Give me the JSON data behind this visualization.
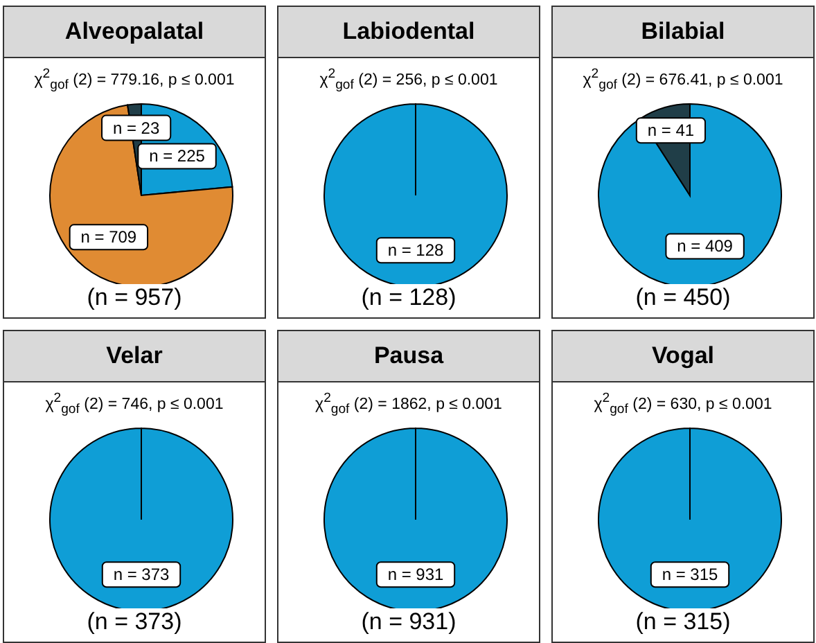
{
  "chart_data": [
    {
      "type": "pie",
      "title": "Alveopalatal",
      "subtitle": "χ$^{2}$$_{gof}$ (2) = 779.16,  p ≤ 0.001",
      "xlabel": "(n = 957)",
      "categories": [
        null,
        null,
        null
      ],
      "values": [
        225,
        709,
        23
      ],
      "colors": [
        "#0f9ed6",
        "#e08b33",
        "#203e48"
      ],
      "value_labels": [
        "n = 225",
        "n = 709",
        "n = 23"
      ],
      "legend": false
    },
    {
      "type": "pie",
      "title": "Labiodental",
      "subtitle": "χ$^{2}$$_{gof}$ (2) = 256,  p ≤ 0.001",
      "xlabel": "(n = 128)",
      "categories": [
        null
      ],
      "values": [
        128
      ],
      "colors": [
        "#0f9ed6"
      ],
      "value_labels": [
        "n = 128"
      ],
      "legend": false
    },
    {
      "type": "pie",
      "title": "Bilabial",
      "subtitle": "χ$^{2}$$_{gof}$ (2) = 676.41,  p ≤ 0.001",
      "xlabel": "(n = 450)",
      "categories": [
        null,
        null
      ],
      "values": [
        409,
        41
      ],
      "colors": [
        "#0f9ed6",
        "#203e48"
      ],
      "value_labels": [
        "n = 409",
        "n = 41"
      ],
      "legend": false
    },
    {
      "type": "pie",
      "title": "Velar",
      "subtitle": "χ$^{2}$$_{gof}$ (2) = 746,  p ≤ 0.001",
      "xlabel": "(n = 373)",
      "categories": [
        null
      ],
      "values": [
        373
      ],
      "colors": [
        "#0f9ed6"
      ],
      "value_labels": [
        "n = 373"
      ],
      "legend": false
    },
    {
      "type": "pie",
      "title": "Pausa",
      "subtitle": "χ$^{2}$$_{gof}$ (2) = 1862,  p ≤ 0.001",
      "xlabel": "(n = 931)",
      "categories": [
        null
      ],
      "values": [
        931
      ],
      "colors": [
        "#0f9ed6"
      ],
      "value_labels": [
        "n = 931"
      ],
      "legend": false
    },
    {
      "type": "pie",
      "title": "Vogal",
      "subtitle": "χ$^{2}$$_{gof}$ (2) = 630,  p ≤ 0.001",
      "xlabel": "(n = 315)",
      "categories": [
        null
      ],
      "values": [
        315
      ],
      "colors": [
        "#0f9ed6"
      ],
      "value_labels": [
        "n = 315"
      ],
      "legend": false
    }
  ]
}
